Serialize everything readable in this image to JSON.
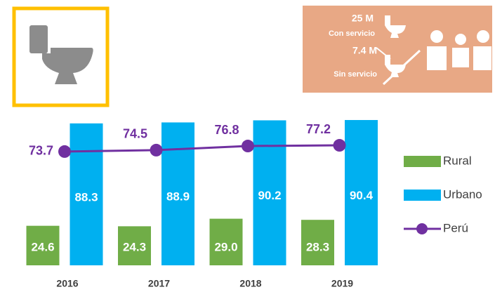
{
  "chart_data": {
    "type": "bar",
    "categories": [
      "2016",
      "2017",
      "2018",
      "2019"
    ],
    "ylim": [
      0,
      100
    ],
    "y2lim": [
      10,
      100
    ],
    "series": [
      {
        "name": "Rural",
        "color": "#70ad47",
        "values": [
          24.6,
          24.3,
          29.0,
          28.3
        ],
        "value_labels": [
          "24.6",
          "24.3",
          "29.0",
          "28.3"
        ]
      },
      {
        "name": "Urbano",
        "color": "#00b0f0",
        "values": [
          88.3,
          88.9,
          90.2,
          90.4
        ],
        "value_labels": [
          "88.3",
          "88.9",
          "90.2",
          "90.4"
        ]
      },
      {
        "name": "Perú",
        "color": "#7030a0",
        "type": "line",
        "axis": "y2",
        "values": [
          73.7,
          74.5,
          76.8,
          77.2
        ],
        "value_labels": [
          "73.7",
          "74.5",
          "76.8",
          "77.2"
        ]
      }
    ],
    "legend": "right"
  },
  "info": {
    "with_service_value": "25 M",
    "with_service_label": "Con servicio",
    "without_service_value": "7.4 M",
    "without_service_label": "Sin servicio"
  }
}
